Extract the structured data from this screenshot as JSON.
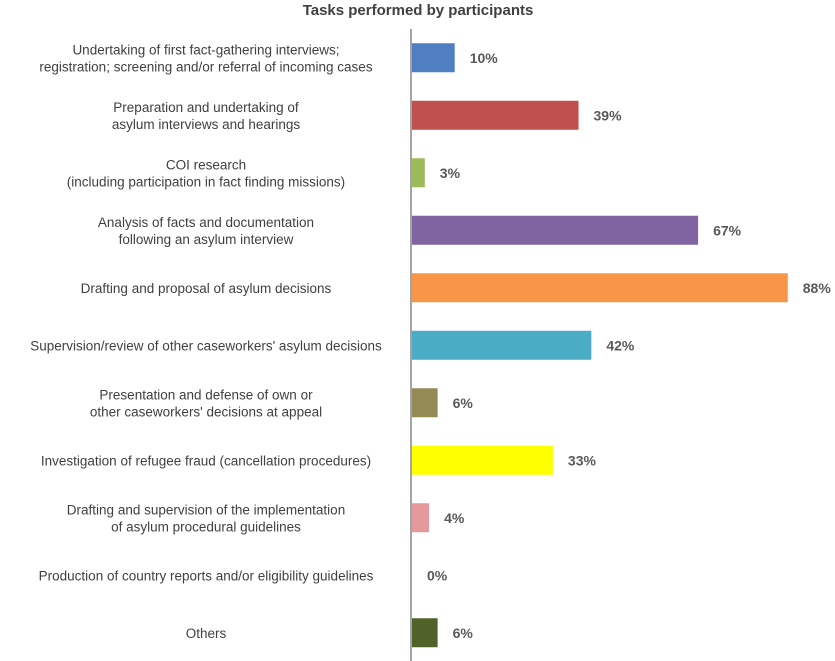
{
  "chart_data": {
    "type": "bar",
    "orientation": "horizontal",
    "title": "Tasks performed by participants",
    "xlabel": "",
    "ylabel": "",
    "grid": false,
    "legend": "none",
    "xlim": [
      0,
      100
    ],
    "categories": [
      [
        "Undertaking of first fact-gathering interviews;",
        "registration; screening and/or referral of incoming cases"
      ],
      [
        "Preparation and undertaking of",
        "asylum interviews and hearings"
      ],
      [
        "COI research",
        "(including  participation in fact finding missions)"
      ],
      [
        "Analysis of facts and documentation",
        "following an asylum interview"
      ],
      [
        "Drafting and proposal of asylum decisions"
      ],
      [
        "Supervision/review of other caseworkers' asylum decisions"
      ],
      [
        "Presentation and defense of own or",
        "other caseworkers' decisions at appeal"
      ],
      [
        "Investigation of refugee fraud (cancellation procedures)"
      ],
      [
        "Drafting and supervision of the implementation",
        "of asylum procedural guidelines"
      ],
      [
        "Production  of country reports and/or eligibility guidelines"
      ],
      [
        "Others"
      ]
    ],
    "values": [
      10,
      39,
      3,
      67,
      88,
      42,
      6,
      33,
      4,
      0,
      6
    ],
    "value_labels": [
      "10%",
      "39%",
      "3%",
      "67%",
      "88%",
      "42%",
      "6%",
      "33%",
      "4%",
      "0%",
      "6%"
    ],
    "colors": [
      "#4F7EC2",
      "#C0504D",
      "#9BBB59",
      "#8064A2",
      "#F79646",
      "#4BACC6",
      "#948A54",
      "#FFFF00",
      "#E6999A",
      "#FFFFFF",
      "#4F6228"
    ]
  }
}
